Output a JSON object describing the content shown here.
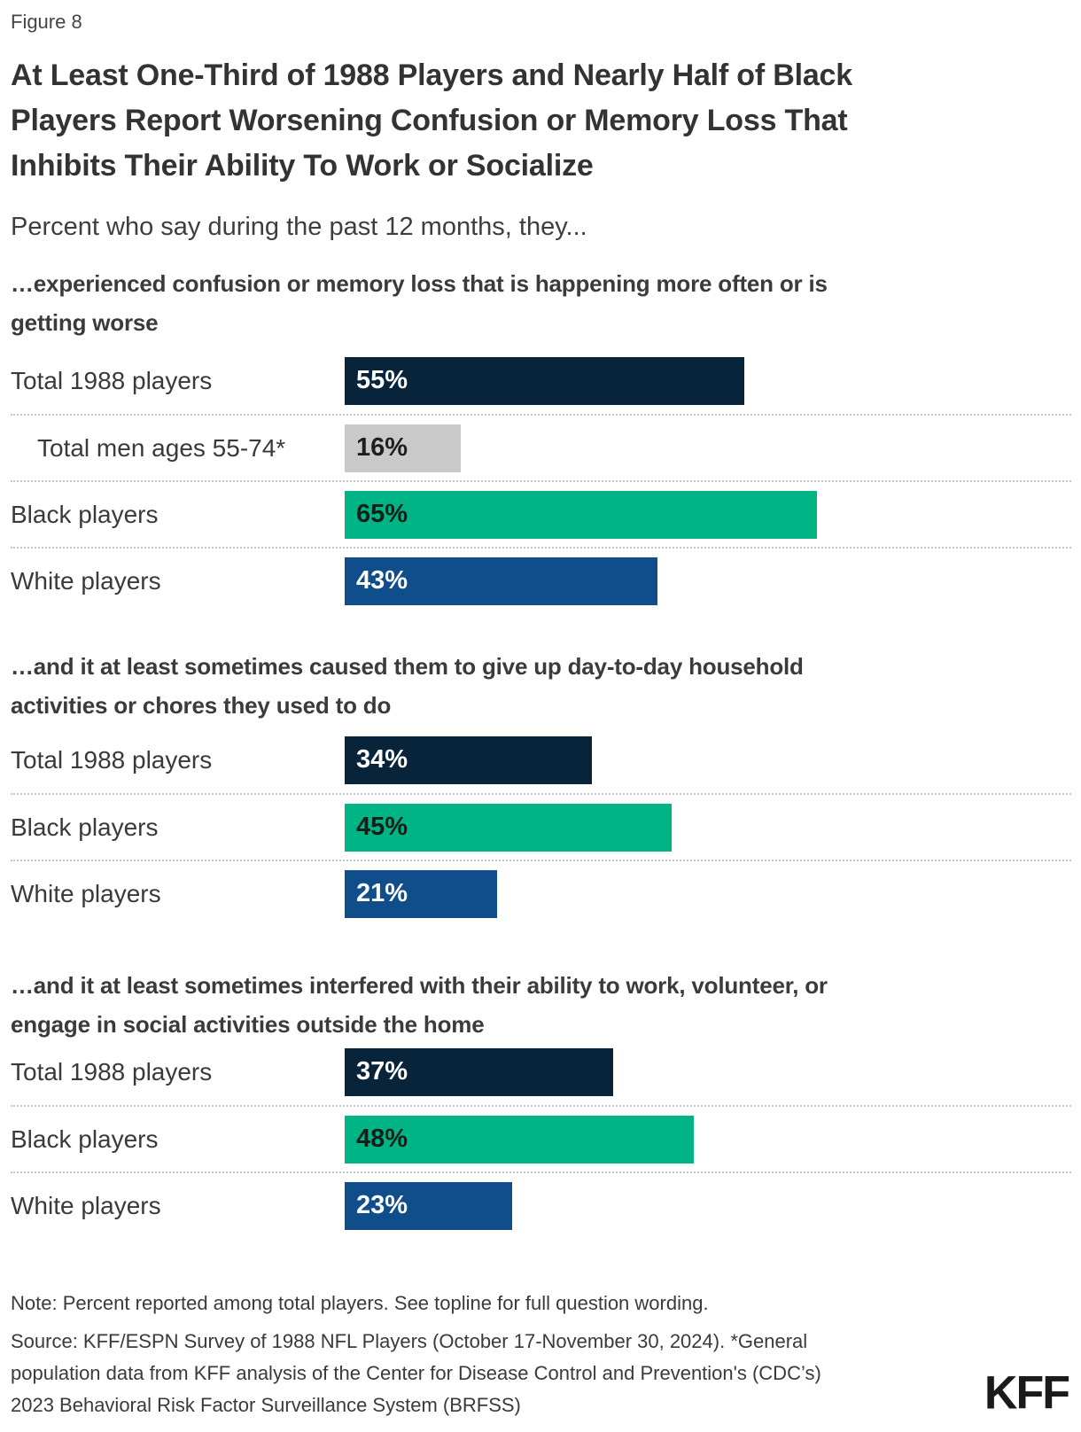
{
  "header": {
    "figure_label": "Figure 8",
    "title_lines": [
      "At Least One-Third of 1988 Players and Nearly Half of Black",
      "Players Report Worsening Confusion or Memory Loss That",
      "Inhibits Their Ability To Work or Socialize"
    ],
    "subtitle": "Percent who say during the past 12 months, they..."
  },
  "colors": {
    "navy": "#08243b",
    "gray": "#c9c9c9",
    "green": "#00b485",
    "blue": "#0f4e8b"
  },
  "chart_data": {
    "type": "bar",
    "orientation": "horizontal",
    "unit": "percent",
    "xlim": [
      0,
      100
    ],
    "title": "At Least One-Third of 1988 Players and Nearly Half of Black Players Report Worsening Confusion or Memory Loss That Inhibits Their Ability To Work or Socialize",
    "subtitle": "Percent who say during the past 12 months, they...",
    "sections": [
      {
        "heading_lines": [
          "…experienced confusion or memory loss that is happening more often or is",
          "getting worse"
        ],
        "rows": [
          {
            "label": "Total 1988 players",
            "value": 55,
            "value_label": "55%",
            "color": "navy",
            "value_text": "#ffffff",
            "indent": false
          },
          {
            "label": "Total men ages 55-74*",
            "value": 16,
            "value_label": "16%",
            "color": "gray",
            "value_text": "#1e1e1e",
            "indent": true
          },
          {
            "label": "Black players",
            "value": 65,
            "value_label": "65%",
            "color": "green",
            "value_text": "#101f1a",
            "indent": false
          },
          {
            "label": "White players",
            "value": 43,
            "value_label": "43%",
            "color": "blue",
            "value_text": "#ffffff",
            "indent": false
          }
        ]
      },
      {
        "heading_lines": [
          "…and it at least sometimes caused them to give up day-to-day household",
          "activities or chores they used to do"
        ],
        "rows": [
          {
            "label": "Total 1988 players",
            "value": 34,
            "value_label": "34%",
            "color": "navy",
            "value_text": "#ffffff",
            "indent": false
          },
          {
            "label": "Black players",
            "value": 45,
            "value_label": "45%",
            "color": "green",
            "value_text": "#101f1a",
            "indent": false
          },
          {
            "label": "White players",
            "value": 21,
            "value_label": "21%",
            "color": "blue",
            "value_text": "#ffffff",
            "indent": false
          }
        ]
      },
      {
        "heading_lines": [
          "…and it at least sometimes interfered with their ability to work, volunteer, or",
          "engage in social activities outside the home"
        ],
        "rows": [
          {
            "label": "Total 1988 players",
            "value": 37,
            "value_label": "37%",
            "color": "navy",
            "value_text": "#ffffff",
            "indent": false
          },
          {
            "label": "Black players",
            "value": 48,
            "value_label": "48%",
            "color": "green",
            "value_text": "#101f1a",
            "indent": false
          },
          {
            "label": "White players",
            "value": 23,
            "value_label": "23%",
            "color": "blue",
            "value_text": "#ffffff",
            "indent": false
          }
        ]
      }
    ]
  },
  "footer": {
    "note": "Note: Percent reported among total players. See topline for full question wording.",
    "source_lines": [
      "Source: KFF/ESPN Survey of 1988 NFL Players (October 17-November 30, 2024). *General",
      "population data from KFF analysis of the Center for Disease Control and Prevention's (CDC’s)",
      "2023 Behavioral Risk Factor Surveillance System (BRFSS)"
    ],
    "logo": "KFF"
  }
}
